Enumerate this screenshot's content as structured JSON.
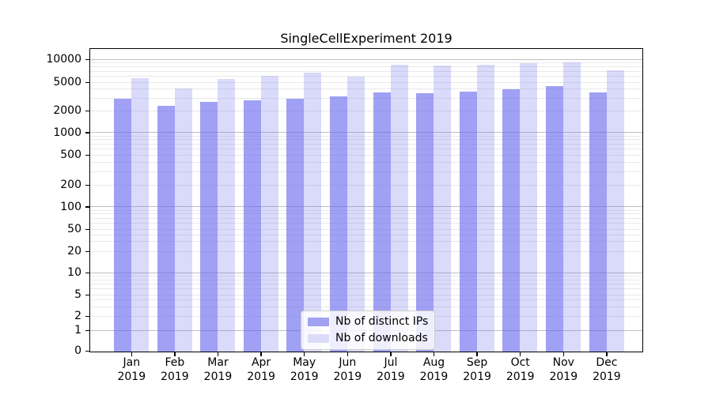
{
  "title": "SingleCellExperiment 2019",
  "colors": {
    "ip_bar": "rgba(102,102,238,0.62)",
    "dl_bar": "rgba(102,102,238,0.24)",
    "legend_ip_swatch": "#a2a2f2",
    "legend_dl_swatch": "#dcdcfa",
    "grid_major": "#c0c0c0",
    "grid_minor": "#e9e9e9",
    "axis": "#000000",
    "background": "#ffffff"
  },
  "chart_data": {
    "type": "bar",
    "title": "SingleCellExperiment 2019",
    "categories": [
      "Jan 2019",
      "Feb 2019",
      "Mar 2019",
      "Apr 2019",
      "May 2019",
      "Jun 2019",
      "Jul 2019",
      "Aug 2019",
      "Sep 2019",
      "Oct 2019",
      "Nov 2019",
      "Dec 2019"
    ],
    "series": [
      {
        "name": "Nb of distinct IPs",
        "values": [
          2950,
          2380,
          2670,
          2840,
          2980,
          3200,
          3700,
          3610,
          3800,
          4100,
          4500,
          3640
        ]
      },
      {
        "name": "Nb of downloads",
        "values": [
          5700,
          4200,
          5640,
          6150,
          6840,
          6110,
          8750,
          8490,
          8700,
          9040,
          9350,
          7280
        ]
      }
    ],
    "yscale": "symlog",
    "ylim": [
      0,
      14000
    ],
    "yticks": [
      0,
      1,
      2,
      5,
      10,
      20,
      50,
      100,
      200,
      500,
      1000,
      2000,
      5000,
      10000
    ],
    "grid": true,
    "legend_position": "lower center"
  }
}
